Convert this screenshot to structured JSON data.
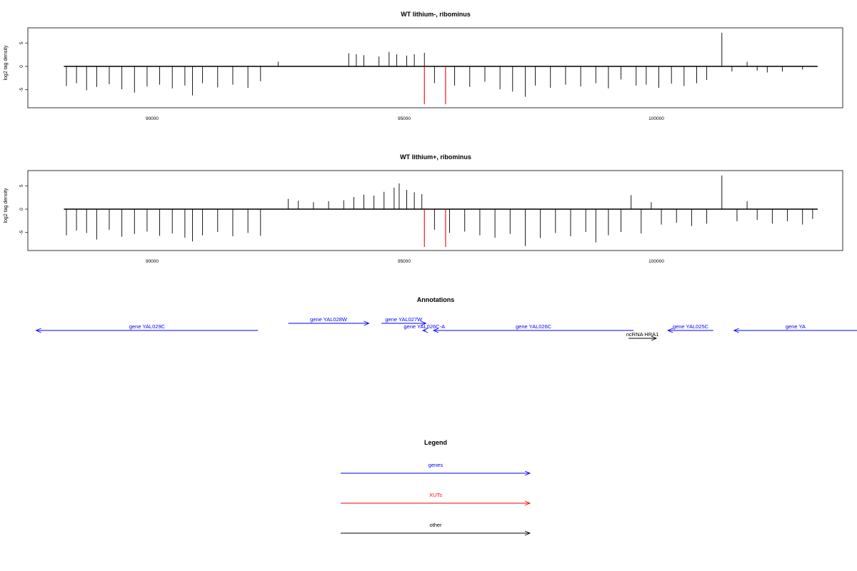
{
  "chart_data": [
    {
      "type": "bar",
      "title": "WT lithium-, ribominus",
      "xlabel": "",
      "ylabel": "log2 tag density",
      "xlim": [
        88000,
        103800
      ],
      "ylim": [
        -8.5,
        8
      ],
      "x_ticks": [
        90000,
        95000,
        100000
      ],
      "x_tick_labels": [
        "90000",
        "95000",
        "100000"
      ],
      "y_ticks": [
        -5,
        0,
        5
      ],
      "y_tick_labels": [
        "-5",
        "0",
        "5"
      ],
      "baseline_range": [
        88250,
        103200
      ],
      "series": [
        {
          "color": "#000000",
          "points": [
            [
              88300,
              -4.2
            ],
            [
              88500,
              -3.6
            ],
            [
              88700,
              -5.1
            ],
            [
              88900,
              -4.4
            ],
            [
              89150,
              -3.8
            ],
            [
              89400,
              -4.9
            ],
            [
              89650,
              -5.6
            ],
            [
              89900,
              -4.3
            ],
            [
              90150,
              -3.9
            ],
            [
              90400,
              -4.7
            ],
            [
              90650,
              -4.1
            ],
            [
              90800,
              -6.2
            ],
            [
              91000,
              -3.6
            ],
            [
              91300,
              -4.5
            ],
            [
              91600,
              -3.9
            ],
            [
              91900,
              -4.6
            ],
            [
              92150,
              -3.2
            ],
            [
              92500,
              1.0
            ],
            [
              93900,
              2.8
            ],
            [
              94050,
              2.6
            ],
            [
              94200,
              2.4
            ],
            [
              94500,
              2.1
            ],
            [
              94700,
              3.1
            ],
            [
              94850,
              2.6
            ],
            [
              95050,
              2.3
            ],
            [
              95200,
              2.6
            ],
            [
              95400,
              2.9
            ],
            [
              95600,
              -3.6
            ],
            [
              96000,
              -4.1
            ],
            [
              96300,
              -4.4
            ],
            [
              96600,
              -3.3
            ],
            [
              96900,
              -4.9
            ],
            [
              97150,
              -5.4
            ],
            [
              97400,
              -6.5
            ],
            [
              97600,
              -4.1
            ],
            [
              97900,
              -4.6
            ],
            [
              98200,
              -3.9
            ],
            [
              98500,
              -4.3
            ],
            [
              98800,
              -3.6
            ],
            [
              99050,
              -4.7
            ],
            [
              99300,
              -2.8
            ],
            [
              99600,
              -4.1
            ],
            [
              99800,
              -3.9
            ],
            [
              100050,
              -4.6
            ],
            [
              100300,
              -3.7
            ],
            [
              100550,
              -4.2
            ],
            [
              100800,
              -3.6
            ],
            [
              101000,
              -2.9
            ],
            [
              101300,
              7.2
            ],
            [
              101500,
              -1.1
            ],
            [
              101800,
              1.0
            ],
            [
              102000,
              -0.9
            ],
            [
              102200,
              -1.3
            ],
            [
              102500,
              -1.1
            ],
            [
              102900,
              -0.7
            ]
          ]
        },
        {
          "color": "#ff0000",
          "points": [
            [
              95400,
              -8.1
            ],
            [
              95820,
              -8.1
            ]
          ]
        }
      ]
    },
    {
      "type": "bar",
      "title": "WT lithium+, ribominus",
      "xlabel": "",
      "ylabel": "log2 tag density",
      "xlim": [
        88000,
        103800
      ],
      "ylim": [
        -8.5,
        8
      ],
      "x_ticks": [
        90000,
        95000,
        100000
      ],
      "x_tick_labels": [
        "90000",
        "95000",
        "100000"
      ],
      "y_ticks": [
        -5,
        0,
        5
      ],
      "y_tick_labels": [
        "-5",
        "0",
        "5"
      ],
      "baseline_range": [
        88250,
        103200
      ],
      "series": [
        {
          "color": "#000000",
          "points": [
            [
              88300,
              -5.6
            ],
            [
              88500,
              -4.6
            ],
            [
              88700,
              -5.1
            ],
            [
              88900,
              -6.5
            ],
            [
              89150,
              -4.4
            ],
            [
              89400,
              -5.9
            ],
            [
              89650,
              -5.3
            ],
            [
              89900,
              -4.8
            ],
            [
              90150,
              -5.7
            ],
            [
              90400,
              -5.2
            ],
            [
              90650,
              -6.1
            ],
            [
              90800,
              -6.9
            ],
            [
              91000,
              -5.6
            ],
            [
              91300,
              -4.9
            ],
            [
              91600,
              -5.8
            ],
            [
              91900,
              -5.1
            ],
            [
              92150,
              -5.7
            ],
            [
              92700,
              2.2
            ],
            [
              92900,
              1.8
            ],
            [
              93200,
              1.5
            ],
            [
              93500,
              1.7
            ],
            [
              93800,
              1.9
            ],
            [
              94000,
              2.6
            ],
            [
              94200,
              3.1
            ],
            [
              94400,
              2.9
            ],
            [
              94600,
              3.7
            ],
            [
              94800,
              4.6
            ],
            [
              94900,
              5.5
            ],
            [
              95050,
              4.1
            ],
            [
              95200,
              3.6
            ],
            [
              95350,
              3.2
            ],
            [
              95600,
              -4.4
            ],
            [
              95900,
              -5.1
            ],
            [
              96200,
              -4.8
            ],
            [
              96500,
              -5.6
            ],
            [
              96800,
              -6.1
            ],
            [
              97100,
              -5.3
            ],
            [
              97400,
              -7.9
            ],
            [
              97700,
              -6.2
            ],
            [
              98000,
              -5.1
            ],
            [
              98300,
              -5.8
            ],
            [
              98600,
              -4.9
            ],
            [
              98800,
              -7.1
            ],
            [
              99050,
              -5.6
            ],
            [
              99300,
              -4.9
            ],
            [
              99500,
              3.0
            ],
            [
              99700,
              -5.2
            ],
            [
              99900,
              1.5
            ],
            [
              100100,
              -3.3
            ],
            [
              100400,
              -2.9
            ],
            [
              100700,
              -3.6
            ],
            [
              101000,
              -3.1
            ],
            [
              101300,
              7.2
            ],
            [
              101600,
              -2.6
            ],
            [
              101800,
              1.7
            ],
            [
              102000,
              -2.3
            ],
            [
              102300,
              -3.1
            ],
            [
              102600,
              -2.6
            ],
            [
              102900,
              -3.3
            ],
            [
              103100,
              -2.1
            ]
          ]
        },
        {
          "color": "#ff0000",
          "points": [
            [
              95400,
              -8.1
            ],
            [
              95820,
              -8.1
            ]
          ]
        }
      ]
    }
  ],
  "annotations": {
    "title": "Annotations",
    "features": [
      {
        "label": "gene YAL029C",
        "start": 92100,
        "end": 87700,
        "color": "#0000ff",
        "row": 1
      },
      {
        "label": "gene YAL028W",
        "start": 92700,
        "end": 94300,
        "color": "#0000ff",
        "row": 0
      },
      {
        "label": "gene YAL027W",
        "start": 94550,
        "end": 95430,
        "color": "#0000ff",
        "row": 0
      },
      {
        "label": "gene YAL026C-A",
        "start": 95430,
        "end": 95370,
        "color": "#0000ff",
        "row": 1
      },
      {
        "label": "gene YAL026C",
        "start": 99550,
        "end": 95580,
        "color": "#0000ff",
        "row": 1
      },
      {
        "label": "ncRNA HRA1",
        "start": 99450,
        "end": 100000,
        "color": "#000000",
        "row": 2
      },
      {
        "label": "gene YAL025C",
        "start": 101130,
        "end": 100230,
        "color": "#0000ff",
        "row": 1
      },
      {
        "label": "gene YA",
        "start": 104000,
        "end": 101540,
        "color": "#0000ff",
        "row": 1
      }
    ]
  },
  "legend": {
    "title": "Legend",
    "items": [
      {
        "label": "genes",
        "color": "#0000ff"
      },
      {
        "label": "XUTs",
        "color": "#ff0000"
      },
      {
        "label": "other",
        "color": "#000000"
      }
    ]
  }
}
